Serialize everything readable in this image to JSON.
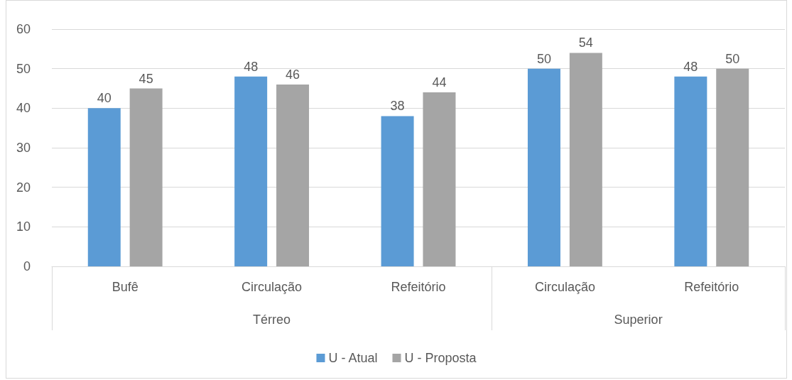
{
  "chart_data": {
    "type": "bar",
    "categories": [
      "Bufê",
      "Circulação",
      "Refeitório",
      "Circulação",
      "Refeitório"
    ],
    "series": [
      {
        "name": "U - Atual",
        "color": "#5b9bd5",
        "values": [
          40,
          48,
          38,
          50,
          48
        ]
      },
      {
        "name": "U - Proposta",
        "color": "#a5a5a5",
        "values": [
          45,
          46,
          44,
          54,
          50
        ]
      }
    ],
    "ylim": [
      0,
      60
    ],
    "yticks": [
      0,
      10,
      20,
      30,
      40,
      50,
      60
    ],
    "grid": "y",
    "legend": "bottom",
    "data_labels": true,
    "annotations": [
      "Térreo",
      "Superior"
    ]
  }
}
